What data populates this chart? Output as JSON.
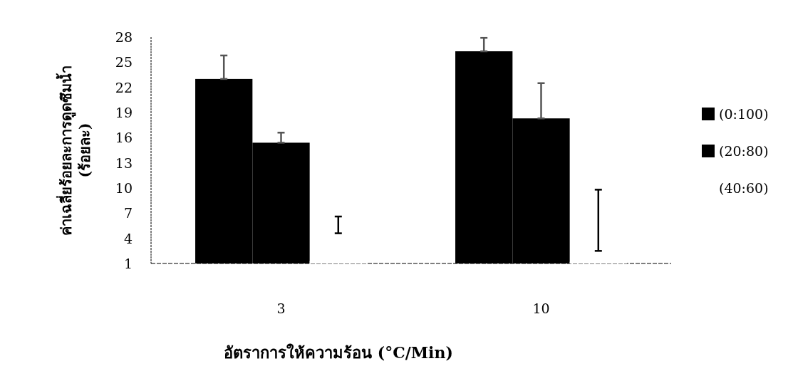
{
  "chart_data": {
    "type": "bar",
    "ylabel": "ค่าเฉลี่ยร้อยละการดูดซึมน้ำ\n(ร้อยละ)",
    "xlabel": "อัตราการให้ความร้อน (°C/Min)",
    "categories": [
      "3",
      "10"
    ],
    "ylim": [
      1,
      28
    ],
    "yticks": [
      1,
      4,
      7,
      10,
      13,
      16,
      19,
      22,
      25,
      28
    ],
    "legend": "right",
    "series": [
      {
        "name": "(0:100)",
        "color": "#000000",
        "values": [
          23.0,
          26.3
        ],
        "errors": [
          [
            23.0,
            25.8
          ],
          [
            26.3,
            27.9
          ]
        ]
      },
      {
        "name": "(20:80)",
        "color": "#000000",
        "values": [
          15.4,
          18.3
        ],
        "errors": [
          [
            15.4,
            16.6
          ],
          [
            18.3,
            22.5
          ]
        ]
      },
      {
        "name": "(40:60)",
        "color": "#ffffff",
        "values": [
          1.3,
          1.2
        ],
        "errors": [
          [
            4.6,
            6.6
          ],
          [
            2.5,
            9.8
          ]
        ]
      }
    ]
  }
}
